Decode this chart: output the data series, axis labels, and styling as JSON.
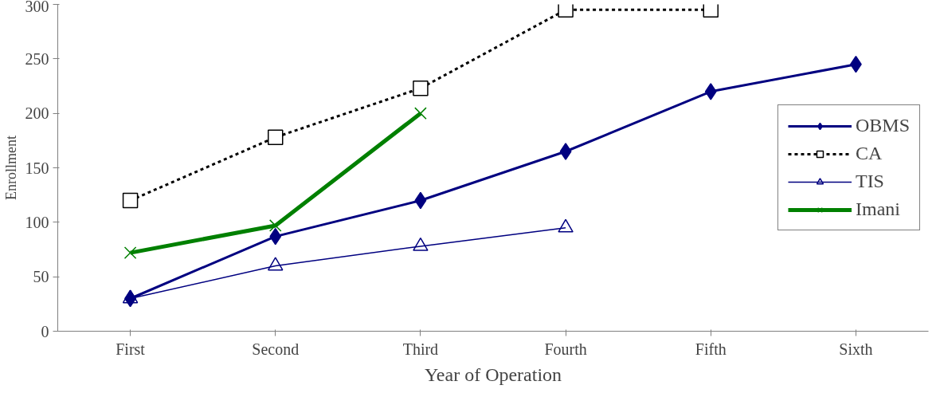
{
  "chart_data": {
    "type": "line",
    "xlabel": "Year of Operation",
    "ylabel": "Enrollment",
    "categories": [
      "First",
      "Second",
      "Third",
      "Fourth",
      "Fifth",
      "Sixth"
    ],
    "series": [
      {
        "name": "OBMS",
        "color": "#000080",
        "values": [
          30,
          87,
          120,
          165,
          220,
          245
        ],
        "marker": "diamond",
        "line_style": "solid"
      },
      {
        "name": "CA",
        "color": "#000000",
        "values": [
          120,
          178,
          223,
          295,
          295,
          null
        ],
        "marker": "square",
        "line_style": "dashed"
      },
      {
        "name": "TIS",
        "color": "#000080",
        "values": [
          30,
          60,
          78,
          95,
          null,
          null
        ],
        "marker": "triangle",
        "line_style": "solid"
      },
      {
        "name": "Imani",
        "color": "#008000",
        "values": [
          72,
          97,
          200,
          null,
          null,
          null
        ],
        "marker": "cross",
        "line_style": "solid"
      }
    ],
    "ylim": [
      0,
      300
    ],
    "yticks": [
      0,
      50,
      100,
      150,
      200,
      250,
      300
    ],
    "grid": false,
    "legend": "right"
  }
}
